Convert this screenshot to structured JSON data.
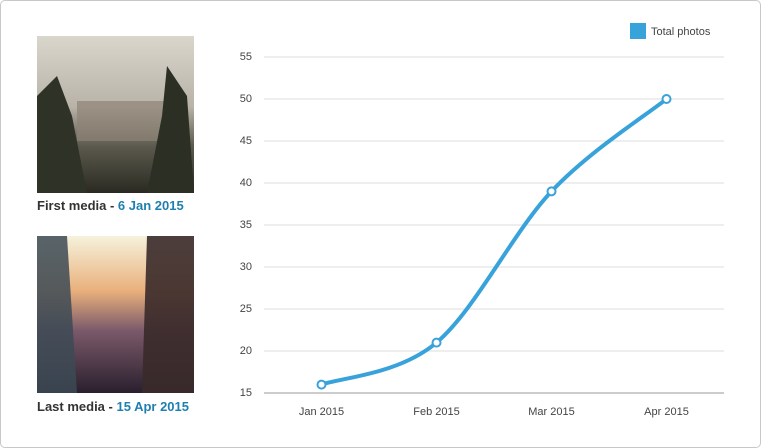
{
  "media": [
    {
      "label": "First media -",
      "date": "6 Jan 2015"
    },
    {
      "label": "Last media -",
      "date": "15 Apr 2015"
    }
  ],
  "chart_data": {
    "type": "line",
    "categories": [
      "Jan 2015",
      "Feb 2015",
      "Mar 2015",
      "Apr 2015"
    ],
    "series": [
      {
        "name": "Total photos",
        "color": "#38a2da",
        "values": [
          16,
          21,
          39,
          50
        ]
      }
    ],
    "ylim": [
      15,
      55
    ],
    "yticks": [
      15,
      20,
      25,
      30,
      35,
      40,
      45,
      50,
      55
    ],
    "grid": true,
    "legend": "top-right"
  }
}
